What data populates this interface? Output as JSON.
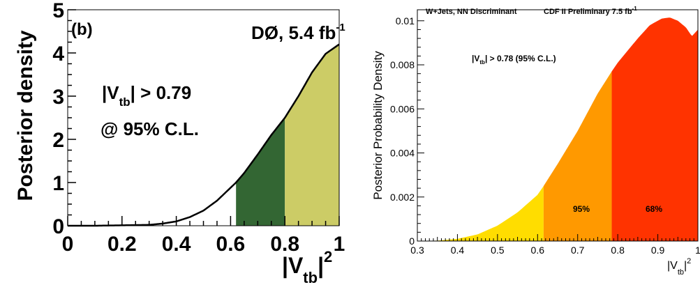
{
  "chart_data": [
    {
      "type": "area",
      "panel_label": "(b)",
      "experiment": "DØ, 5.4 fb",
      "experiment_sup": "-1",
      "ylabel": "Posterior density",
      "xlabel_main": "|V",
      "xlabel_sub": "tb",
      "xlabel_tail": "|",
      "xlabel_sup": "2",
      "limit_line1_main": "|V",
      "limit_line1_sub": "tb",
      "limit_line1_tail": "| > 0.79",
      "limit_line2": "@ 95% C.L.",
      "xlim": [
        0,
        1
      ],
      "ylim": [
        0,
        5
      ],
      "x_ticks": [
        "0",
        "0.2",
        "0.4",
        "0.6",
        "0.8",
        "1"
      ],
      "x_tick_values": [
        0,
        0.2,
        0.4,
        0.6,
        0.8,
        1
      ],
      "y_ticks": [
        "0",
        "1",
        "2",
        "3",
        "4",
        "5"
      ],
      "y_tick_values": [
        0,
        1,
        2,
        3,
        4,
        5
      ],
      "x": [
        0,
        0.1,
        0.2,
        0.3,
        0.35,
        0.4,
        0.45,
        0.5,
        0.55,
        0.6,
        0.62,
        0.65,
        0.7,
        0.75,
        0.8,
        0.85,
        0.9,
        0.95,
        1.0
      ],
      "y": [
        0,
        0.0,
        0.01,
        0.02,
        0.05,
        0.1,
        0.2,
        0.35,
        0.58,
        0.88,
        1.0,
        1.22,
        1.65,
        2.1,
        2.5,
        3.0,
        3.55,
        3.98,
        4.2
      ],
      "bands": [
        {
          "from": 0.62,
          "to": 0.8,
          "color": "#336633"
        },
        {
          "from": 0.8,
          "to": 1.0,
          "color": "#cccc66"
        }
      ],
      "curve_color": "#000000",
      "grid": false
    },
    {
      "type": "area",
      "title_left": "W+Jets, NN Discriminant",
      "title_right": "CDF II Preliminary 7.5 fb",
      "title_right_sup": "-1",
      "ylabel": "Posterior Probability Density",
      "xlabel_main": "|V",
      "xlabel_sub": "tb",
      "xlabel_tail": "|",
      "xlabel_sup": "2",
      "limit_main": "|V",
      "limit_sub": "tb",
      "limit_tail": "| > 0.78 (95% C.L.)",
      "band_label_95": "95%",
      "band_label_68": "68%",
      "xlim": [
        0.3,
        1
      ],
      "ylim": [
        0,
        0.0105
      ],
      "x_ticks": [
        "0.3",
        "0.4",
        "0.5",
        "0.6",
        "0.7",
        "0.8",
        "0.9",
        "1"
      ],
      "x_tick_values": [
        0.3,
        0.4,
        0.5,
        0.6,
        0.7,
        0.8,
        0.9,
        1.0
      ],
      "y_ticks": [
        "0",
        "0.002",
        "0.004",
        "0.006",
        "0.008",
        "0.01"
      ],
      "y_tick_values": [
        0,
        0.002,
        0.004,
        0.006,
        0.008,
        0.01
      ],
      "x": [
        0.3,
        0.35,
        0.4,
        0.45,
        0.5,
        0.55,
        0.6,
        0.615,
        0.65,
        0.7,
        0.75,
        0.785,
        0.8,
        0.85,
        0.88,
        0.91,
        0.93,
        0.95,
        0.97,
        0.985,
        1.0
      ],
      "y": [
        0.0,
        2e-05,
        0.0001,
        0.0003,
        0.0007,
        0.0013,
        0.0021,
        0.0025,
        0.0035,
        0.005,
        0.0067,
        0.0077,
        0.0081,
        0.0092,
        0.0098,
        0.0101,
        0.01015,
        0.01,
        0.0097,
        0.0093,
        0.0096
      ],
      "bands": [
        {
          "from": 0.3,
          "to": 0.615,
          "color": "#ffdd00"
        },
        {
          "from": 0.615,
          "to": 0.785,
          "color": "#ff9900"
        },
        {
          "from": 0.785,
          "to": 1.0,
          "color": "#ff3300"
        }
      ],
      "grid": false
    }
  ]
}
